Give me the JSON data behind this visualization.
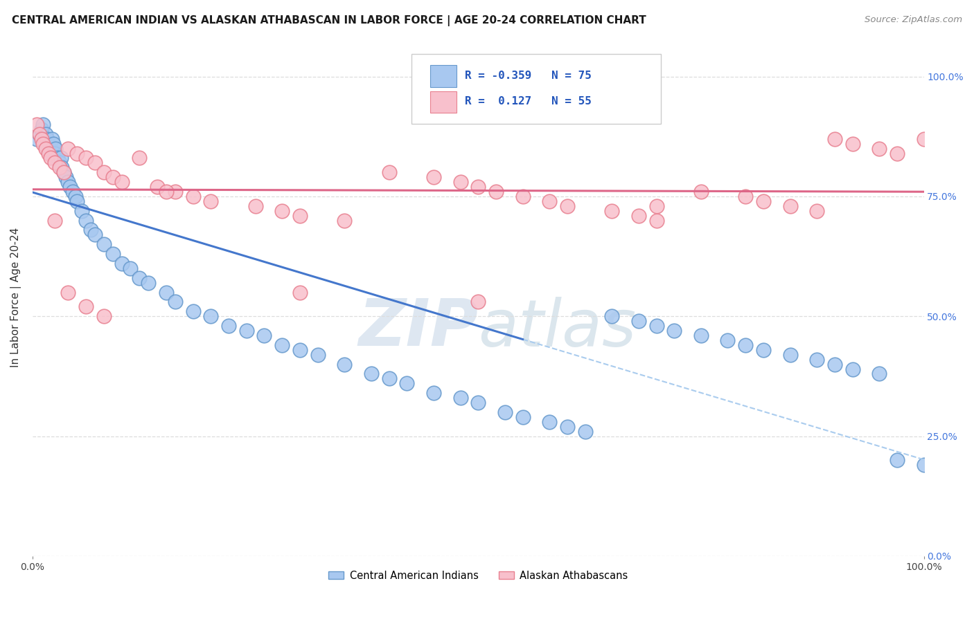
{
  "title": "CENTRAL AMERICAN INDIAN VS ALASKAN ATHABASCAN IN LABOR FORCE | AGE 20-24 CORRELATION CHART",
  "source": "Source: ZipAtlas.com",
  "ylabel": "In Labor Force | Age 20-24",
  "blue_R": -0.359,
  "blue_N": 75,
  "pink_R": 0.127,
  "pink_N": 55,
  "blue_color": "#A8C8F0",
  "blue_edge_color": "#6699CC",
  "pink_color": "#F8C0CC",
  "pink_edge_color": "#E88090",
  "blue_line_color": "#4477CC",
  "pink_line_color": "#DD6688",
  "dashed_line_color": "#AACCEE",
  "watermark_color": "#C8DCF0",
  "ytick_label_color": "#4477DD",
  "ytick_labels": [
    "0.0%",
    "25.0%",
    "50.0%",
    "75.0%",
    "100.0%"
  ],
  "ytick_values": [
    0.0,
    0.25,
    0.5,
    0.75,
    1.0
  ],
  "background_color": "#FFFFFF",
  "grid_color": "#DDDDDD",
  "legend_label_blue": "Central American Indians",
  "legend_label_pink": "Alaskan Athabascans",
  "blue_scatter_x": [
    0.005,
    0.008,
    0.01,
    0.012,
    0.013,
    0.014,
    0.015,
    0.016,
    0.017,
    0.018,
    0.02,
    0.021,
    0.022,
    0.023,
    0.024,
    0.025,
    0.026,
    0.028,
    0.03,
    0.032,
    0.033,
    0.035,
    0.037,
    0.04,
    0.042,
    0.045,
    0.048,
    0.05,
    0.055,
    0.06,
    0.065,
    0.07,
    0.08,
    0.09,
    0.1,
    0.11,
    0.12,
    0.13,
    0.15,
    0.16,
    0.18,
    0.2,
    0.22,
    0.24,
    0.26,
    0.28,
    0.3,
    0.32,
    0.35,
    0.38,
    0.4,
    0.42,
    0.45,
    0.48,
    0.5,
    0.53,
    0.55,
    0.58,
    0.6,
    0.62,
    0.65,
    0.68,
    0.7,
    0.72,
    0.75,
    0.78,
    0.8,
    0.82,
    0.85,
    0.88,
    0.9,
    0.92,
    0.95,
    0.97,
    1.0
  ],
  "blue_scatter_y": [
    0.87,
    0.88,
    0.89,
    0.9,
    0.87,
    0.86,
    0.88,
    0.87,
    0.85,
    0.86,
    0.84,
    0.85,
    0.87,
    0.86,
    0.83,
    0.84,
    0.85,
    0.83,
    0.82,
    0.83,
    0.81,
    0.8,
    0.79,
    0.78,
    0.77,
    0.76,
    0.75,
    0.74,
    0.72,
    0.7,
    0.68,
    0.67,
    0.65,
    0.63,
    0.61,
    0.6,
    0.58,
    0.57,
    0.55,
    0.53,
    0.51,
    0.5,
    0.48,
    0.47,
    0.46,
    0.44,
    0.43,
    0.42,
    0.4,
    0.38,
    0.37,
    0.36,
    0.34,
    0.33,
    0.32,
    0.3,
    0.29,
    0.28,
    0.27,
    0.26,
    0.5,
    0.49,
    0.48,
    0.47,
    0.46,
    0.45,
    0.44,
    0.43,
    0.42,
    0.41,
    0.4,
    0.39,
    0.38,
    0.2,
    0.19
  ],
  "pink_scatter_x": [
    0.005,
    0.008,
    0.01,
    0.012,
    0.015,
    0.018,
    0.02,
    0.025,
    0.03,
    0.035,
    0.04,
    0.05,
    0.06,
    0.07,
    0.08,
    0.09,
    0.1,
    0.12,
    0.14,
    0.16,
    0.18,
    0.2,
    0.25,
    0.28,
    0.3,
    0.35,
    0.4,
    0.45,
    0.48,
    0.5,
    0.52,
    0.55,
    0.58,
    0.6,
    0.65,
    0.68,
    0.7,
    0.75,
    0.8,
    0.82,
    0.85,
    0.88,
    0.9,
    0.92,
    0.95,
    0.97,
    1.0,
    0.025,
    0.04,
    0.06,
    0.08,
    0.15,
    0.3,
    0.5,
    0.7
  ],
  "pink_scatter_y": [
    0.9,
    0.88,
    0.87,
    0.86,
    0.85,
    0.84,
    0.83,
    0.82,
    0.81,
    0.8,
    0.85,
    0.84,
    0.83,
    0.82,
    0.8,
    0.79,
    0.78,
    0.83,
    0.77,
    0.76,
    0.75,
    0.74,
    0.73,
    0.72,
    0.71,
    0.7,
    0.8,
    0.79,
    0.78,
    0.77,
    0.76,
    0.75,
    0.74,
    0.73,
    0.72,
    0.71,
    0.7,
    0.76,
    0.75,
    0.74,
    0.73,
    0.72,
    0.87,
    0.86,
    0.85,
    0.84,
    0.87,
    0.7,
    0.55,
    0.52,
    0.5,
    0.76,
    0.55,
    0.53,
    0.73
  ]
}
